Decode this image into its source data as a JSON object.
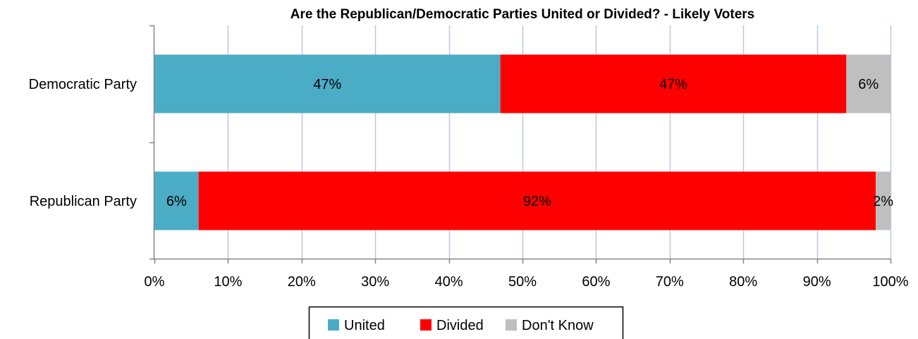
{
  "chart_data": {
    "type": "bar",
    "orientation": "horizontal",
    "stacked": true,
    "title": "Are the Republican/Democratic Parties United or Divided? - Likely Voters",
    "categories": [
      "Democratic Party",
      "Republican Party"
    ],
    "series": [
      {
        "name": "United",
        "values": [
          47,
          6
        ],
        "labels": [
          "47%",
          "6%"
        ],
        "color": "#4bacc6"
      },
      {
        "name": "Divided",
        "values": [
          47,
          92
        ],
        "labels": [
          "47%",
          "92%"
        ],
        "color": "#ff0000"
      },
      {
        "name": "Don't Know",
        "values": [
          6,
          2
        ],
        "labels": [
          "6%",
          "2%"
        ],
        "color": "#bfbfbf"
      }
    ],
    "xlim": [
      0,
      100
    ],
    "xticks": [
      0,
      10,
      20,
      30,
      40,
      50,
      60,
      70,
      80,
      90,
      100
    ],
    "xtick_labels": [
      "0%",
      "10%",
      "20%",
      "30%",
      "40%",
      "50%",
      "60%",
      "70%",
      "80%",
      "90%",
      "100%"
    ],
    "grid": true,
    "gridline_color": "#b9c9e4",
    "legend_position": "bottom"
  }
}
